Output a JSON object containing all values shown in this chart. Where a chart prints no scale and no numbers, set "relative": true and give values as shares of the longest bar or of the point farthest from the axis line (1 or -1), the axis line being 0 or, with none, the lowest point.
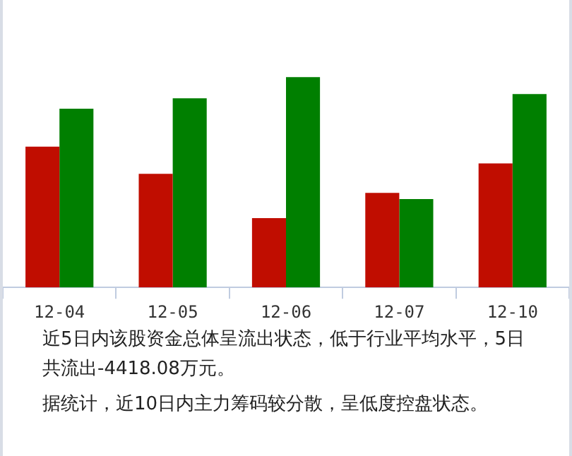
{
  "chart_data": {
    "type": "bar",
    "relative": true,
    "categories": [
      "12-04",
      "12-05",
      "12-06",
      "12-07",
      "12-10"
    ],
    "series": [
      {
        "color": "#c00d00",
        "values": [
          0.67,
          0.54,
          0.33,
          0.45,
          0.59
        ]
      },
      {
        "color": "#007f00",
        "values": [
          0.85,
          0.9,
          1,
          0.42,
          0.92
        ]
      }
    ],
    "annotations": [
      "近5日内该股资金总体呈流出状态，低于行业平均水平，5日共流出-4418.08万元。",
      "据统计，近10日内主力筹码较分散，呈低度控盘状态。"
    ]
  }
}
